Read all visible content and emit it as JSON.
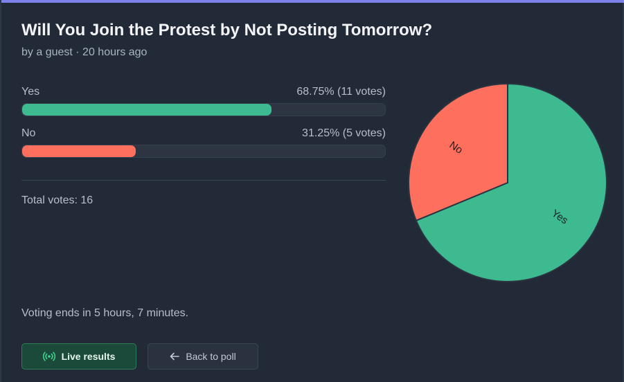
{
  "poll": {
    "title": "Will You Join the Protest by Not Posting Tomorrow?",
    "byline": "by a guest · 20 hours ago",
    "total_label": "Total votes: 16",
    "ends_label": "Voting ends in 5 hours, 7 minutes."
  },
  "options": [
    {
      "label": "Yes",
      "stat": "68.75% (11 votes)",
      "percent": 68.75,
      "votes": 11,
      "color": "#3dba8f"
    },
    {
      "label": "No",
      "stat": "31.25% (5 votes)",
      "percent": 31.25,
      "votes": 5,
      "color": "#ff6f5e"
    }
  ],
  "buttons": {
    "live_label": "Live results",
    "back_label": "Back to poll",
    "live_icon": "broadcast-icon",
    "back_icon": "arrow-left-icon"
  },
  "chart_data": {
    "type": "pie",
    "categories": [
      "Yes",
      "No"
    ],
    "values": [
      11,
      5
    ],
    "colors": [
      "#3dba8f",
      "#ff6f5e"
    ]
  }
}
